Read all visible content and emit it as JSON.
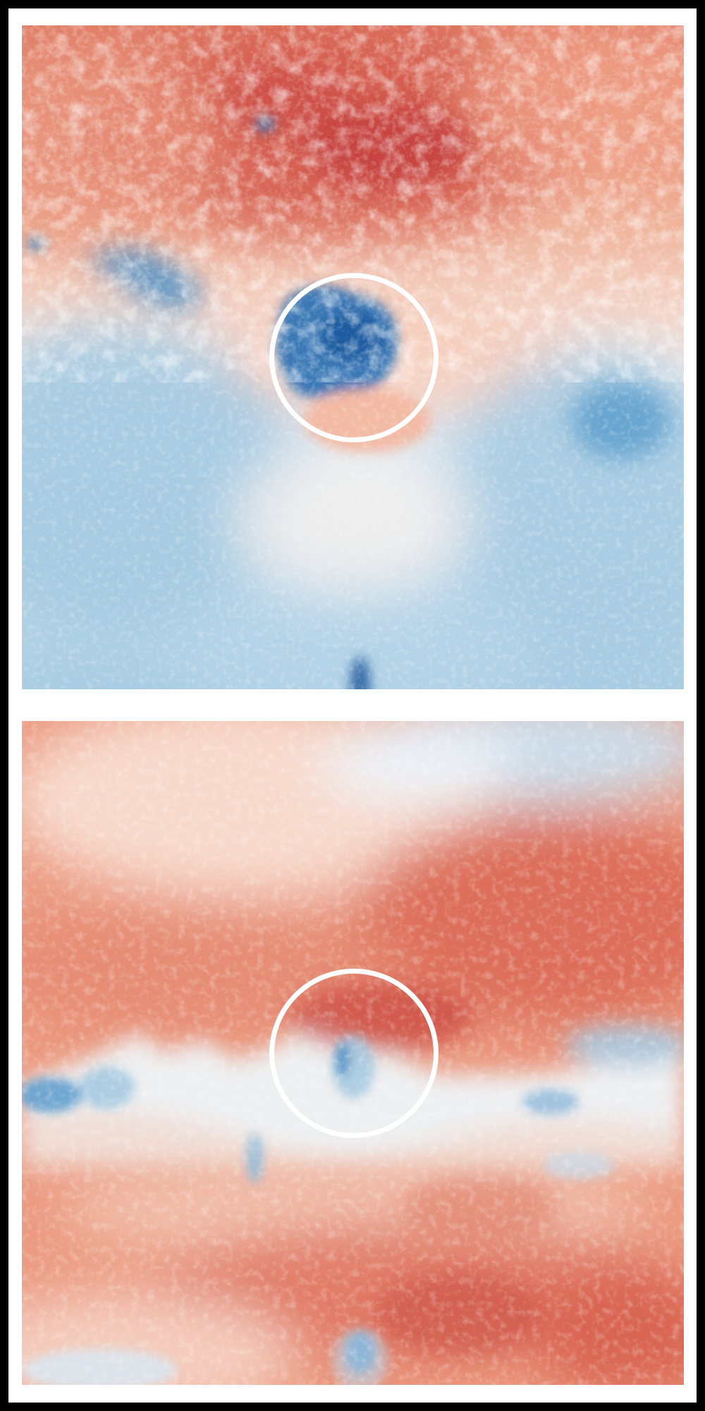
{
  "figure": {
    "panels": [
      {
        "id": "top",
        "highlight": "circle",
        "colormap": [
          "#2166ac",
          "#4393c3",
          "#92c5de",
          "#f7f7f7",
          "#f4a582",
          "#d6604d",
          "#b2182b"
        ]
      },
      {
        "id": "bottom",
        "highlight": "circle",
        "colormap": [
          "#2166ac",
          "#4393c3",
          "#92c5de",
          "#f7f7f7",
          "#f4a582",
          "#d6604d",
          "#b2182b"
        ]
      }
    ],
    "frame_color": "#000000",
    "background": "#ffffff",
    "marker_color": "#ffffff"
  }
}
